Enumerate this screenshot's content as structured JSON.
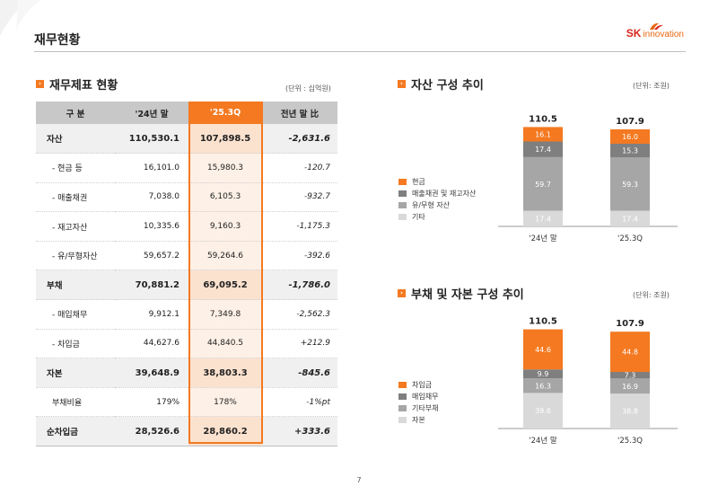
{
  "header": {
    "title": "재무현황",
    "logo_sk": "SK",
    "logo_innovation": "innovation"
  },
  "table_section": {
    "title": "재무제표 현황",
    "unit": "(단위 : 십억원)",
    "columns": [
      "구 분",
      "'24년 말",
      "'25.3Q",
      "전년 말 比"
    ],
    "rows": [
      {
        "label": "자산",
        "main": true,
        "v24": "110,530.1",
        "v25": "107,898.5",
        "chg": "-2,631.6"
      },
      {
        "label": "- 현금 등",
        "main": false,
        "v24": "16,101.0",
        "v25": "15,980.3",
        "chg": "-120.7"
      },
      {
        "label": "- 매출채권",
        "main": false,
        "v24": "7,038.0",
        "v25": "6,105.3",
        "chg": "-932.7"
      },
      {
        "label": "- 재고자산",
        "main": false,
        "v24": "10,335.6",
        "v25": "9,160.3",
        "chg": "-1,175.3"
      },
      {
        "label": "- 유/무형자산",
        "main": false,
        "v24": "59,657.2",
        "v25": "59,264.6",
        "chg": "-392.6"
      },
      {
        "label": "부채",
        "main": true,
        "v24": "70,881.2",
        "v25": "69,095.2",
        "chg": "-1,786.0"
      },
      {
        "label": "- 매입채무",
        "main": false,
        "v24": "9,912.1",
        "v25": "7,349.8",
        "chg": "-2,562.3"
      },
      {
        "label": "- 차입금",
        "main": false,
        "v24": "44,627.6",
        "v25": "44,840.5",
        "chg": "+212.9"
      },
      {
        "label": "자본",
        "main": true,
        "v24": "39,648.9",
        "v25": "38,803.3",
        "chg": "-845.6"
      },
      {
        "label": "부채비율",
        "main": false,
        "v24": "179%",
        "v25": "178%",
        "chg": "-1%pt"
      },
      {
        "label": "순차입금",
        "main": true,
        "v24": "28,526.6",
        "v25": "28,860.2",
        "chg": "+333.6"
      }
    ]
  },
  "chart_data": [
    {
      "type": "bar",
      "stacked": true,
      "title": "자산 구성 추이",
      "unit": "(단위: 조원)",
      "categories": [
        "'24년 말",
        "'25.3Q"
      ],
      "totals": [
        "110.5",
        "107.9"
      ],
      "series": [
        {
          "name": "기타",
          "color": "#d9d9d9",
          "values": [
            17.4,
            17.4
          ]
        },
        {
          "name": "유/무형 자산",
          "color": "#a6a6a6",
          "values": [
            59.7,
            59.3
          ]
        },
        {
          "name": "매출채권 및 재고자산",
          "color": "#7f7f7f",
          "values": [
            17.4,
            15.3
          ]
        },
        {
          "name": "현금",
          "color": "#f47920",
          "values": [
            16.1,
            16.0
          ]
        }
      ],
      "legend_order": [
        "현금",
        "매출채권 및 재고자산",
        "유/무형 자산",
        "기타"
      ],
      "legend": "left"
    },
    {
      "type": "bar",
      "stacked": true,
      "title": "부채 및 자본 구성 추이",
      "unit": "(단위: 조원)",
      "categories": [
        "'24년 말",
        "'25.3Q"
      ],
      "totals": [
        "110.5",
        "107.9"
      ],
      "series": [
        {
          "name": "자본",
          "color": "#d9d9d9",
          "values": [
            39.6,
            38.8
          ]
        },
        {
          "name": "기타부채",
          "color": "#a6a6a6",
          "values": [
            16.3,
            16.9
          ]
        },
        {
          "name": "매입채무",
          "color": "#7f7f7f",
          "values": [
            9.9,
            7.3
          ]
        },
        {
          "name": "차입금",
          "color": "#f47920",
          "values": [
            44.6,
            44.8
          ]
        }
      ],
      "legend_order": [
        "차입금",
        "매입채무",
        "기타부채",
        "자본"
      ],
      "legend": "left"
    }
  ],
  "colors": {
    "accent": "#f47920",
    "dark_gray": "#7f7f7f",
    "mid_gray": "#a6a6a6",
    "light_gray": "#d9d9d9"
  },
  "footer": {
    "page_number": "7"
  }
}
